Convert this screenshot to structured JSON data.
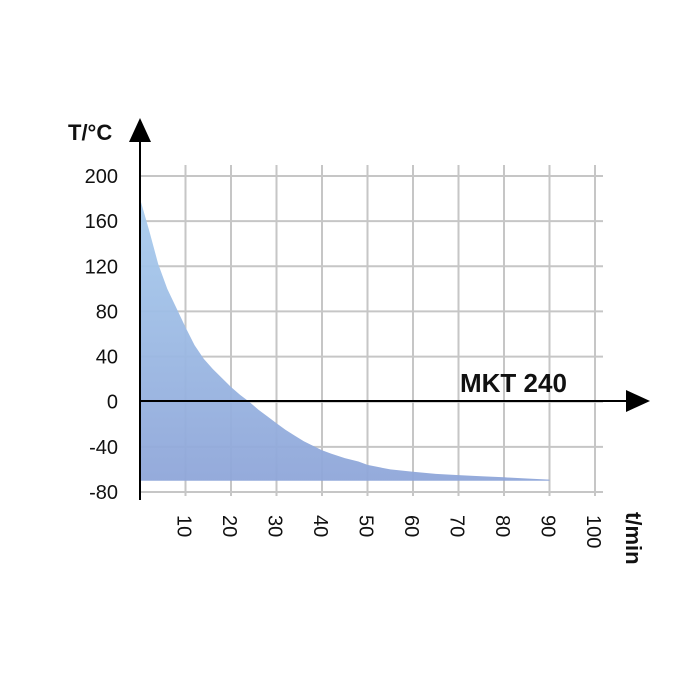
{
  "chart_data": {
    "type": "area",
    "title": "",
    "xlabel": "t/min",
    "ylabel": "T/°C",
    "series_label": "MKT 240",
    "xlim": [
      0,
      100
    ],
    "ylim": [
      -80,
      200
    ],
    "x_ticks": [
      10,
      20,
      30,
      40,
      50,
      60,
      70,
      80,
      90,
      100
    ],
    "y_ticks": [
      200,
      160,
      120,
      80,
      40,
      0,
      -40,
      -80
    ],
    "grid": true,
    "fill_baseline": -70,
    "fill_colors": [
      "#a9cdee",
      "#8fa6d9"
    ],
    "series": [
      {
        "x": [
          0,
          2,
          4,
          6,
          8,
          10,
          12,
          14,
          16,
          18,
          20,
          22,
          24,
          26,
          28,
          30,
          32,
          34,
          36,
          38,
          40,
          42,
          45,
          48,
          50,
          55,
          60,
          65,
          70,
          75,
          80,
          85,
          90
        ],
        "y": [
          180,
          152,
          122,
          100,
          83,
          66,
          50,
          38,
          29,
          21,
          13,
          6,
          0,
          -7,
          -13,
          -19,
          -25,
          -30,
          -35,
          -39,
          -43,
          -46,
          -50,
          -53,
          -56,
          -60,
          -62,
          -64,
          -65,
          -66,
          -67,
          -68,
          -69
        ]
      }
    ]
  }
}
